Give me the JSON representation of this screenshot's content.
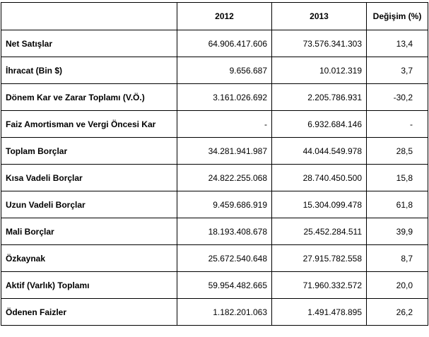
{
  "table": {
    "headers": [
      "",
      "2012",
      "2013",
      "Değişim (%)"
    ],
    "rows": [
      {
        "label": "Net Satışlar",
        "y2012": "64.906.417.606",
        "y2013": "73.576.341.303",
        "change": "13,4"
      },
      {
        "label": "İhracat (Bin $)",
        "y2012": "9.656.687",
        "y2013": "10.012.319",
        "change": "3,7"
      },
      {
        "label": "Dönem Kar ve Zarar Toplamı (V.Ö.)",
        "y2012": "3.161.026.692",
        "y2013": "2.205.786.931",
        "change": "-30,2"
      },
      {
        "label": "Faiz Amortisman ve Vergi Öncesi Kar",
        "y2012": "-",
        "y2013": "6.932.684.146",
        "change": "-"
      },
      {
        "label": "Toplam Borçlar",
        "y2012": "34.281.941.987",
        "y2013": "44.044.549.978",
        "change": "28,5"
      },
      {
        "label": "Kısa Vadeli Borçlar",
        "y2012": "24.822.255.068",
        "y2013": "28.740.450.500",
        "change": "15,8"
      },
      {
        "label": "Uzun Vadeli Borçlar",
        "y2012": "9.459.686.919",
        "y2013": "15.304.099.478",
        "change": "61,8"
      },
      {
        "label": "Mali Borçlar",
        "y2012": "18.193.408.678",
        "y2013": "25.452.284.511",
        "change": "39,9"
      },
      {
        "label": "Özkaynak",
        "y2012": "25.672.540.648",
        "y2013": "27.915.782.558",
        "change": "8,7"
      },
      {
        "label": "Aktif (Varlık) Toplamı",
        "y2012": "59.954.482.665",
        "y2013": "71.960.332.572",
        "change": "20,0"
      },
      {
        "label": "Ödenen Faizler",
        "y2012": "1.182.201.063",
        "y2013": "1.491.478.895",
        "change": "26,2"
      }
    ]
  }
}
